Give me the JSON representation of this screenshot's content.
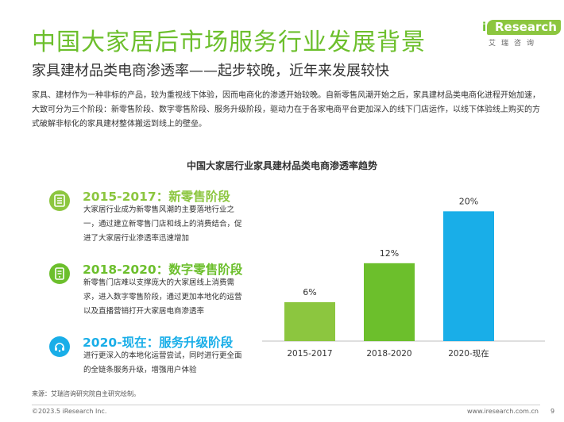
{
  "header": {
    "title": "中国大家居后市场服务行业发展背景",
    "subtitle": "家具建材品类电商渗透率——起步较晚，近年来发展较快"
  },
  "logo": {
    "brand_i": "i",
    "brand": "Research",
    "cn": "艾瑞咨询"
  },
  "intro": "家具、建材作为一种非标的产品，较为重视线下体验，因而电商化的渗透开始较晚。自新零售风潮开始之后，家具建材品类电商化进程开始加速，大致可分为三个阶段：新零售阶段、数字零售阶段、服务升级阶段，驱动力在于各家电商平台更加深入的线下门店运作，以线下体验线上购买的方式破解非标化的家具建材整体搬运到线上的壁垒。",
  "stages": [
    {
      "title": "2015-2017：新零售阶段",
      "desc": "大家居行业成为新零售风潮的主要落地行业之一，通过建立新零售门店和线上的消费结合，促进了大家居行业渗透率迅速增加",
      "color": "#8cc63f",
      "icon": "store-icon"
    },
    {
      "title": "2018-2020：数字零售阶段",
      "desc": "新零售门店难以支撑庞大的大家居线上消费需求，进入数字零售阶段，通过更加本地化的运营以及直播营销打开大家居电商渗透率",
      "color": "#6cbf2c",
      "icon": "phone-icon"
    },
    {
      "title": "2020-现在：服务升级阶段",
      "desc": "进行更深入的本地化运营尝试，同时进行更全面的全链条服务升级，增强用户体验",
      "color": "#19aee8",
      "icon": "service-icon"
    }
  ],
  "chart_data": {
    "type": "bar",
    "title": "中国大家居行业家具建材品类电商渗透率趋势",
    "categories": [
      "2015-2017",
      "2018-2020",
      "2020-现在"
    ],
    "values": [
      6,
      12,
      20
    ],
    "labels": [
      "6%",
      "12%",
      "20%"
    ],
    "colors": [
      "#8cc63f",
      "#6cbf2c",
      "#19aee8"
    ],
    "ylim": [
      0,
      22
    ],
    "xlabel": "",
    "ylabel": ""
  },
  "source": "来源：艾瑞咨询研究院自主研究绘制。",
  "footer": {
    "copyright": "©2023.5 iResearch Inc.",
    "website": "www.iresearch.com.cn",
    "page": "9"
  }
}
